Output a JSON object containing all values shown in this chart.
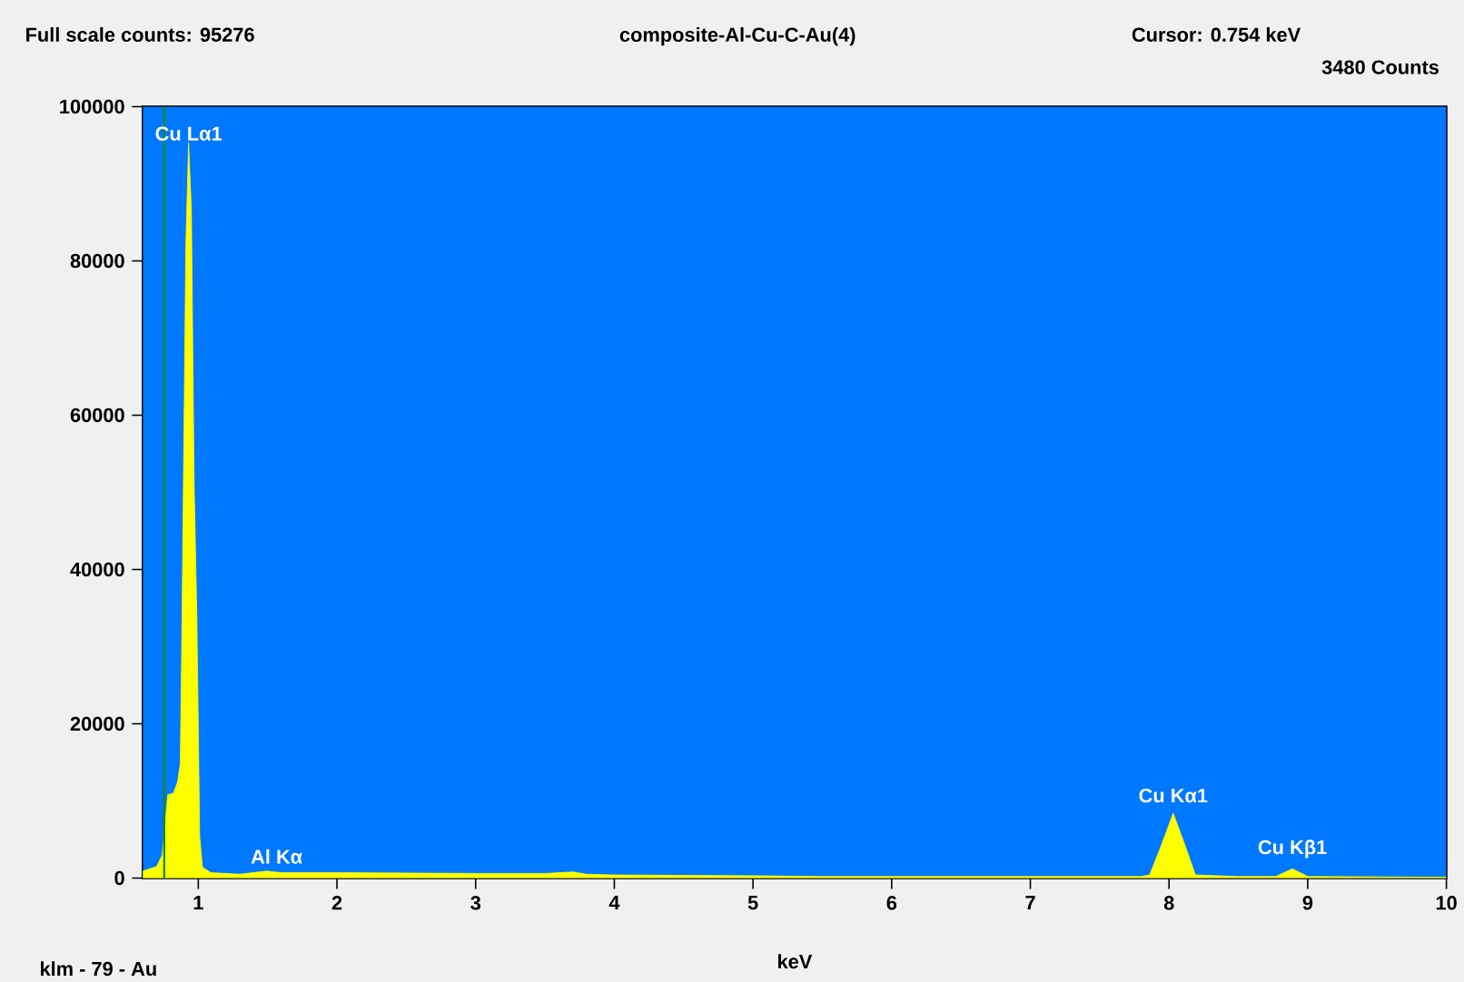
{
  "chart_data": {
    "type": "area",
    "title": "composite-Al-Cu-C-Au(4)",
    "xlabel": "keV",
    "annotations": [
      "Full scale counts: 95276",
      "Cursor: 0.754 keV",
      "3480 Counts",
      "klm - 79 - Au",
      {
        "text": "Cu Lα1",
        "x": 0.93,
        "y": 95300
      },
      "Al Kα",
      {
        "text": "Cu Kα1",
        "x": 8.03,
        "y": 9500
      },
      {
        "text": "Cu Kβ1",
        "x": 8.89,
        "y": 2300
      }
    ],
    "x": [
      0.6,
      0.7,
      0.74,
      0.78,
      0.82,
      0.85,
      0.87,
      0.88,
      0.9,
      0.91,
      0.93,
      0.95,
      0.97,
      0.99,
      1.01,
      1.03,
      1.09,
      1.3,
      1.49,
      1.6,
      2.0,
      3.0,
      3.5,
      3.7,
      3.8,
      4.0,
      5.0,
      5.5,
      7.0,
      7.8,
      7.86,
      7.95,
      8.03,
      8.11,
      8.19,
      8.5,
      8.77,
      8.89,
      9.0,
      10.0
    ],
    "values": [
      900,
      1500,
      3000,
      10800,
      11000,
      12400,
      14800,
      29100,
      63500,
      81800,
      95300,
      86700,
      51000,
      33500,
      5400,
      1400,
      700,
      500,
      900,
      700,
      700,
      600,
      600,
      800,
      500,
      400,
      300,
      200,
      200,
      200,
      400,
      4500,
      8400,
      4500,
      400,
      200,
      200,
      1200,
      200,
      100
    ],
    "color": "#ffff00",
    "xlim": [
      0.6,
      10
    ],
    "ylim": [
      0,
      100000
    ],
    "xticks": [
      1,
      2,
      3,
      4,
      5,
      6,
      7,
      8,
      9,
      10
    ],
    "yticks": [
      0,
      20000,
      40000,
      60000,
      80000,
      100000
    ],
    "ref_lines": [
      {
        "axis": "x",
        "value": 0.754,
        "color": "#1a8a1a"
      }
    ]
  }
}
